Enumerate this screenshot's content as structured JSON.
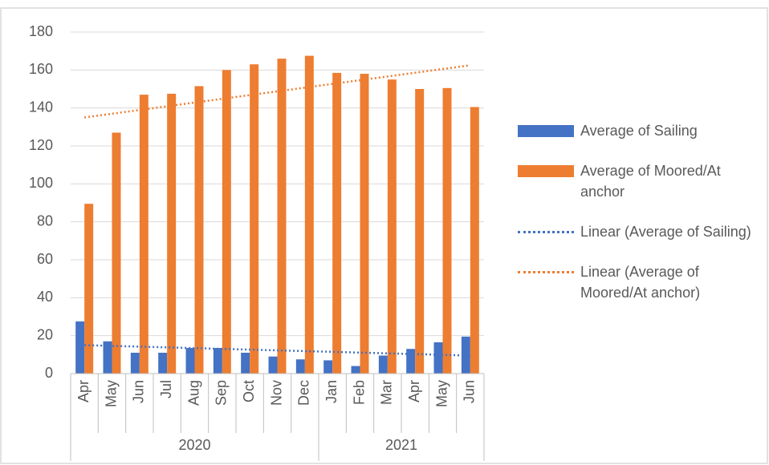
{
  "chart_data": {
    "type": "bar",
    "category_groups": [
      {
        "label": "2020",
        "categories": [
          "Apr",
          "May",
          "Jun",
          "Jul",
          "Aug",
          "Sep",
          "Oct",
          "Nov",
          "Dec"
        ]
      },
      {
        "label": "2021",
        "categories": [
          "Jan",
          "Feb",
          "Mar",
          "Apr",
          "May",
          "Jun"
        ]
      }
    ],
    "series": [
      {
        "name": "Average of Sailing",
        "color": "#4472c4",
        "values": [
          27.5,
          17,
          11,
          11,
          13.5,
          13.5,
          11,
          9,
          7.5,
          7,
          4,
          9.5,
          13,
          16.5,
          19.5
        ]
      },
      {
        "name": "Average of Moored/At anchor",
        "color": "#ed7d31",
        "values": [
          89.5,
          127,
          147,
          147.5,
          151.5,
          160,
          163,
          166,
          167.5,
          158.5,
          158,
          155,
          150,
          150.5,
          140.5
        ]
      }
    ],
    "trendlines": [
      {
        "name": "Linear (Average of Sailing)",
        "color": "#4472c4",
        "values": [
          15,
          9.5
        ]
      },
      {
        "name": "Linear (Average of Moored/At anchor)",
        "color": "#ed7d31",
        "values": [
          135,
          162.5
        ]
      }
    ],
    "ylim": [
      0,
      180
    ],
    "yticks": [
      0,
      20,
      40,
      60,
      80,
      100,
      120,
      140,
      160,
      180
    ],
    "grid": true,
    "legend": "right"
  }
}
